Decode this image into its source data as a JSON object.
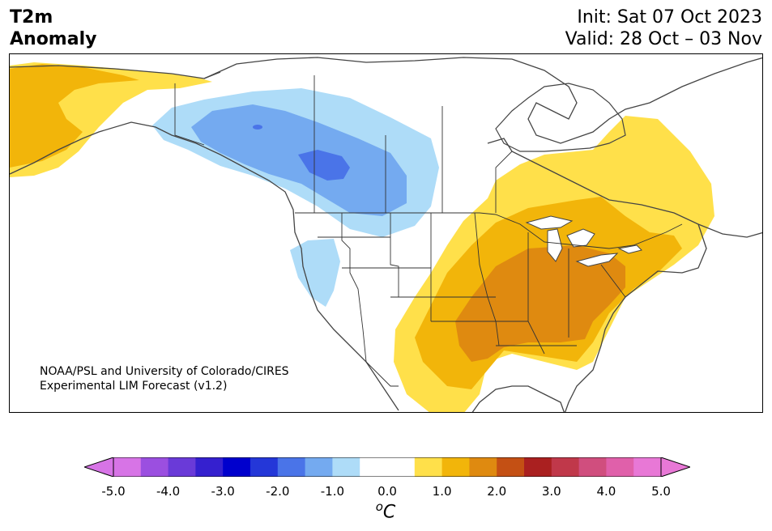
{
  "header": {
    "variable": "T2m",
    "quantity": "Anomaly",
    "init": "Init: Sat 07 Oct 2023",
    "valid": "Valid: 28 Oct – 03 Nov"
  },
  "credit": {
    "line1": "NOAA/PSL and University of Colorado/CIRES",
    "line2": "Experimental LIM Forecast (v1.2)"
  },
  "colorbar": {
    "unit_base": "C",
    "unit_sup": "o",
    "ticks": [
      "-5.0",
      "-4.0",
      "-3.0",
      "-2.0",
      "-1.0",
      "0.0",
      "1.0",
      "2.0",
      "3.0",
      "4.0",
      "5.0"
    ],
    "min": -5.0,
    "max": 5.0,
    "step": 0.5,
    "colors": {
      "under": "#d774e6",
      "bins": [
        "#d774e6",
        "#9b4fe0",
        "#6a3ad8",
        "#3520cf",
        "#0000cd",
        "#2437d8",
        "#4a74e8",
        "#74aaf0",
        "#aedcf8",
        "#ffffff",
        "#ffffff",
        "#ffe04a",
        "#f2b50a",
        "#df8a10",
        "#c45014",
        "#aa2020",
        "#c0384a",
        "#d04e7e",
        "#e060aa",
        "#e878d6"
      ],
      "over": "#e878d6"
    }
  },
  "map": {
    "region": "North America",
    "colors": {
      "cold_1": "#aedcf8",
      "cold_2": "#74aaf0",
      "cold_3": "#4a74e8",
      "warm_1": "#ffe04a",
      "warm_2": "#f2b50a",
      "warm_3": "#df8a10",
      "coast": "#444444",
      "border": "#333333"
    }
  }
}
